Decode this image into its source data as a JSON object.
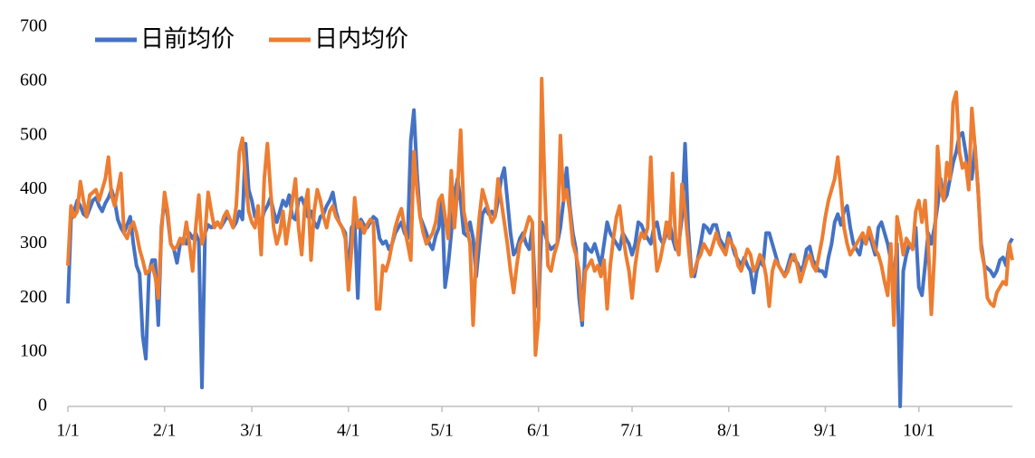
{
  "chart_data": {
    "type": "line",
    "categories": [
      "1/1",
      null,
      null,
      null,
      null,
      null,
      null,
      null,
      null,
      null,
      null,
      null,
      null,
      null,
      null,
      null,
      null,
      null,
      null,
      null,
      null,
      null,
      null,
      null,
      null,
      null,
      null,
      null,
      null,
      null,
      null,
      "2/1",
      null,
      null,
      null,
      null,
      null,
      null,
      null,
      null,
      null,
      null,
      null,
      null,
      null,
      null,
      null,
      null,
      null,
      null,
      null,
      null,
      null,
      null,
      null,
      null,
      null,
      null,
      null,
      "3/1",
      null,
      null,
      null,
      null,
      null,
      null,
      null,
      null,
      null,
      null,
      null,
      null,
      null,
      null,
      null,
      null,
      null,
      null,
      null,
      null,
      null,
      null,
      null,
      null,
      null,
      null,
      null,
      null,
      null,
      null,
      "4/1",
      null,
      null,
      null,
      null,
      null,
      null,
      null,
      null,
      null,
      null,
      null,
      null,
      null,
      null,
      null,
      null,
      null,
      null,
      null,
      null,
      null,
      null,
      null,
      null,
      null,
      null,
      null,
      null,
      null,
      "5/1",
      null,
      null,
      null,
      null,
      null,
      null,
      null,
      null,
      null,
      null,
      null,
      null,
      null,
      null,
      null,
      null,
      null,
      null,
      null,
      null,
      null,
      null,
      null,
      null,
      null,
      null,
      null,
      null,
      null,
      null,
      "6/1",
      null,
      null,
      null,
      null,
      null,
      null,
      null,
      null,
      null,
      null,
      null,
      null,
      null,
      null,
      null,
      null,
      null,
      null,
      null,
      null,
      null,
      null,
      null,
      null,
      null,
      null,
      null,
      null,
      null,
      "7/1",
      null,
      null,
      null,
      null,
      null,
      null,
      null,
      null,
      null,
      null,
      null,
      null,
      null,
      null,
      null,
      null,
      null,
      null,
      null,
      null,
      null,
      null,
      null,
      null,
      null,
      null,
      null,
      null,
      null,
      null,
      "8/1",
      null,
      null,
      null,
      null,
      null,
      null,
      null,
      null,
      null,
      null,
      null,
      null,
      null,
      null,
      null,
      null,
      null,
      null,
      null,
      null,
      null,
      null,
      null,
      null,
      null,
      null,
      null,
      null,
      null,
      null,
      "9/1",
      null,
      null,
      null,
      null,
      null,
      null,
      null,
      null,
      null,
      null,
      null,
      null,
      null,
      null,
      null,
      null,
      null,
      null,
      null,
      null,
      null,
      null,
      null,
      null,
      null,
      null,
      null,
      null,
      null,
      "10/1",
      null,
      null,
      null,
      null,
      null,
      null,
      null,
      null,
      null,
      null,
      null,
      null,
      null,
      null,
      null,
      null,
      null,
      null,
      null,
      null,
      null,
      null,
      null,
      null,
      null,
      null,
      null,
      null,
      null,
      null
    ],
    "series": [
      {
        "name": "日前均价",
        "color": "#4472c4",
        "values": [
          190,
          345,
          360,
          380,
          370,
          355,
          350,
          365,
          380,
          385,
          370,
          360,
          375,
          385,
          400,
          380,
          345,
          330,
          320,
          335,
          350,
          300,
          260,
          245,
          130,
          88,
          245,
          270,
          270,
          150,
          330,
          385,
          350,
          300,
          290,
          265,
          300,
          310,
          300,
          320,
          310,
          320,
          305,
          35,
          320,
          335,
          330,
          335,
          340,
          330,
          340,
          350,
          345,
          330,
          340,
          360,
          345,
          485,
          400,
          380,
          350,
          345,
          340,
          360,
          370,
          385,
          360,
          340,
          360,
          380,
          370,
          390,
          350,
          345,
          380,
          385,
          370,
          350,
          360,
          340,
          330,
          350,
          355,
          370,
          380,
          395,
          360,
          340,
          330,
          320,
          235,
          330,
          340,
          200,
          345,
          335,
          330,
          340,
          350,
          345,
          310,
          300,
          305,
          290,
          300,
          320,
          330,
          340,
          320,
          310,
          490,
          547,
          430,
          350,
          335,
          320,
          300,
          290,
          315,
          330,
          380,
          220,
          260,
          320,
          390,
          420,
          380,
          320,
          315,
          340,
          310,
          240,
          300,
          355,
          365,
          355,
          360,
          350,
          380,
          420,
          440,
          380,
          320,
          280,
          290,
          310,
          320,
          300,
          290,
          330,
          200,
          180,
          340,
          320,
          300,
          290,
          295,
          300,
          330,
          380,
          440,
          370,
          320,
          290,
          200,
          150,
          300,
          290,
          285,
          300,
          280,
          260,
          300,
          340,
          320,
          310,
          300,
          290,
          320,
          310,
          300,
          280,
          300,
          340,
          335,
          320,
          310,
          300,
          330,
          340,
          310,
          300,
          320,
          340,
          310,
          290,
          300,
          350,
          485,
          330,
          250,
          240,
          270,
          300,
          335,
          330,
          320,
          335,
          335,
          310,
          300,
          290,
          320,
          300,
          280,
          270,
          260,
          275,
          260,
          250,
          210,
          250,
          270,
          260,
          320,
          320,
          300,
          280,
          260,
          250,
          240,
          260,
          280,
          270,
          265,
          250,
          260,
          290,
          295,
          270,
          260,
          250,
          250,
          240,
          275,
          300,
          340,
          355,
          335,
          360,
          370,
          330,
          300,
          290,
          280,
          310,
          300,
          320,
          300,
          280,
          330,
          340,
          320,
          300,
          270,
          240,
          300,
          0,
          250,
          280,
          300,
          290,
          330,
          220,
          205,
          260,
          320,
          300,
          330,
          370,
          420,
          380,
          390,
          420,
          450,
          470,
          500,
          505,
          470,
          430,
          420,
          480,
          400,
          300,
          260,
          255,
          250,
          240,
          250,
          270,
          275,
          260,
          300,
          310
        ]
      },
      {
        "name": "日内均价",
        "color": "#ed7d31",
        "values": [
          260,
          370,
          350,
          360,
          415,
          380,
          350,
          390,
          395,
          400,
          380,
          400,
          420,
          460,
          390,
          370,
          400,
          430,
          320,
          310,
          330,
          340,
          320,
          290,
          270,
          245,
          250,
          260,
          240,
          200,
          320,
          395,
          360,
          300,
          290,
          295,
          310,
          300,
          340,
          300,
          250,
          330,
          390,
          300,
          320,
          395,
          360,
          330,
          340,
          330,
          350,
          360,
          345,
          330,
          370,
          470,
          495,
          420,
          360,
          340,
          330,
          370,
          280,
          420,
          485,
          400,
          330,
          300,
          320,
          360,
          300,
          340,
          380,
          420,
          330,
          280,
          370,
          400,
          270,
          360,
          400,
          380,
          350,
          330,
          360,
          370,
          350,
          340,
          330,
          310,
          215,
          290,
          385,
          330,
          340,
          320,
          335,
          345,
          340,
          180,
          180,
          260,
          250,
          270,
          300,
          330,
          350,
          365,
          330,
          300,
          270,
          470,
          400,
          350,
          320,
          300,
          310,
          320,
          340,
          380,
          390,
          350,
          310,
          435,
          330,
          400,
          510,
          360,
          330,
          300,
          150,
          280,
          350,
          400,
          380,
          360,
          340,
          350,
          420,
          380,
          340,
          300,
          250,
          210,
          260,
          300,
          310,
          330,
          350,
          340,
          95,
          160,
          605,
          400,
          260,
          250,
          280,
          300,
          500,
          380,
          400,
          360,
          300,
          280,
          250,
          160,
          250,
          260,
          270,
          250,
          260,
          240,
          270,
          180,
          260,
          310,
          350,
          370,
          320,
          280,
          250,
          200,
          260,
          300,
          320,
          310,
          330,
          460,
          320,
          250,
          270,
          300,
          340,
          310,
          430,
          300,
          280,
          410,
          360,
          300,
          240,
          250,
          270,
          280,
          300,
          290,
          280,
          300,
          320,
          300,
          290,
          280,
          310,
          300,
          290,
          260,
          250,
          270,
          290,
          280,
          250,
          260,
          280,
          270,
          240,
          185,
          250,
          270,
          260,
          250,
          240,
          250,
          270,
          280,
          260,
          230,
          250,
          270,
          280,
          260,
          250,
          280,
          310,
          350,
          380,
          400,
          420,
          460,
          400,
          330,
          300,
          280,
          290,
          300,
          310,
          320,
          300,
          330,
          310,
          290,
          280,
          260,
          230,
          205,
          300,
          150,
          350,
          320,
          280,
          310,
          300,
          290,
          360,
          380,
          340,
          380,
          300,
          170,
          280,
          480,
          400,
          380,
          450,
          420,
          560,
          580,
          470,
          440,
          450,
          400,
          550,
          480,
          400,
          290,
          260,
          200,
          190,
          185,
          210,
          220,
          230,
          225,
          300,
          270
        ]
      }
    ],
    "ylim": [
      0,
      700
    ],
    "yticks": [
      0,
      100,
      200,
      300,
      400,
      500,
      600,
      700
    ],
    "grid": false,
    "legend": "top-left"
  }
}
